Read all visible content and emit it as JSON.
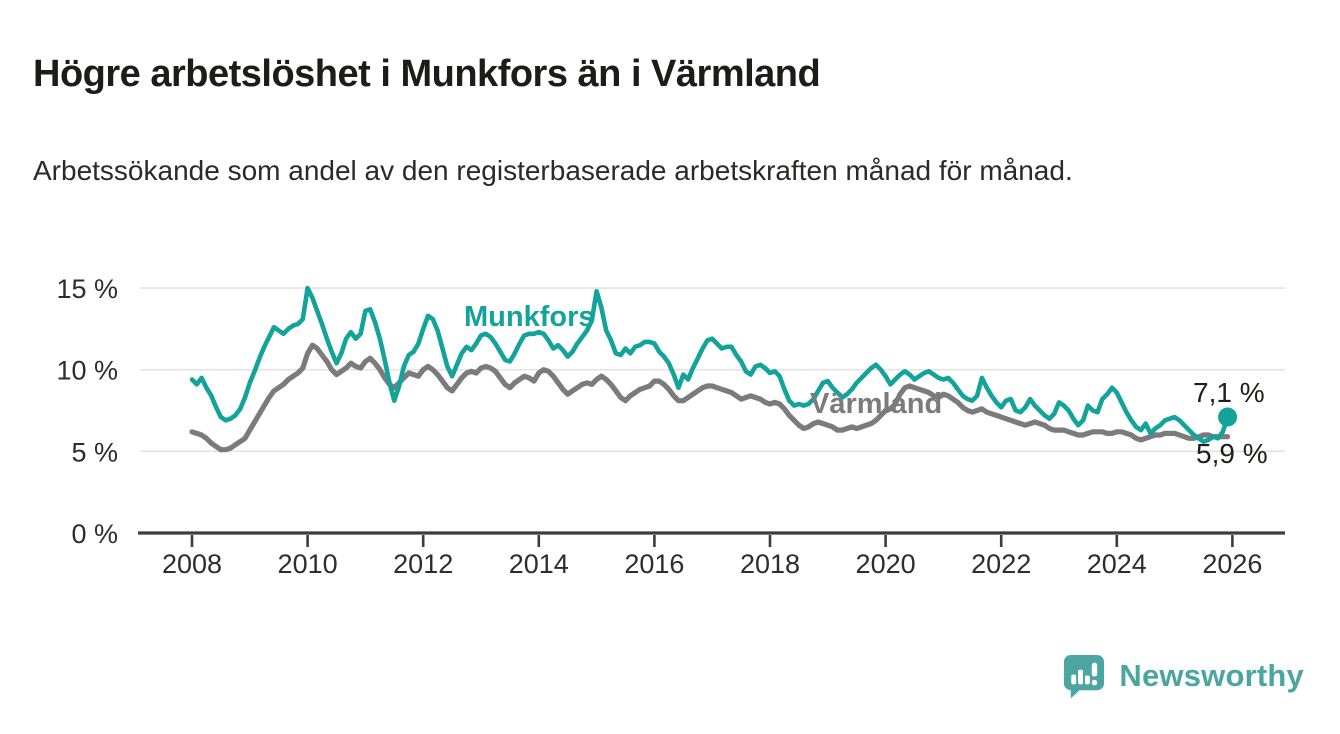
{
  "header": {
    "title": "Högre arbetslöshet i Munkfors än i Värmland",
    "subtitle": "Arbetssökande som andel av den registerbaserade arbetskraften månad för månad."
  },
  "chart_data": {
    "type": "line",
    "title": "Högre arbetslöshet i Munkfors än i Värmland",
    "x_axis": {
      "tick_years": [
        2008,
        2010,
        2012,
        2014,
        2016,
        2018,
        2020,
        2022,
        2024,
        2026
      ],
      "start": "2008-01",
      "end": "2025-12",
      "interval": "monthly"
    },
    "y_axis": {
      "tick_labels": [
        "0 %",
        "5 %",
        "10 %",
        "15 %"
      ],
      "ticks_pct": [
        0,
        5,
        10,
        15
      ],
      "ylim": [
        0,
        16.5
      ],
      "grid": true
    },
    "legend_position": "inline-labels",
    "series": [
      {
        "name": "Munkfors",
        "color": "#13a39a",
        "end_value": 7.1,
        "end_label": "7,1 %",
        "values": [
          9.4,
          9.1,
          9.5,
          8.9,
          8.4,
          7.7,
          7.1,
          6.9,
          7.0,
          7.2,
          7.6,
          8.3,
          9.2,
          9.9,
          10.7,
          11.4,
          12.0,
          12.6,
          12.4,
          12.2,
          12.5,
          12.7,
          12.8,
          13.1,
          15.0,
          14.4,
          13.6,
          12.8,
          11.9,
          11.1,
          10.4,
          11.0,
          11.9,
          12.3,
          11.9,
          12.2,
          13.6,
          13.7,
          12.9,
          11.9,
          10.6,
          9.2,
          8.1,
          9.0,
          10.2,
          10.9,
          11.1,
          11.6,
          12.5,
          13.3,
          13.1,
          12.4,
          11.3,
          10.2,
          9.6,
          10.3,
          11.0,
          11.4,
          11.2,
          11.6,
          12.1,
          12.2,
          12.0,
          11.6,
          11.1,
          10.6,
          10.5,
          11.0,
          11.6,
          12.1,
          12.2,
          12.2,
          12.3,
          12.2,
          11.8,
          11.3,
          11.5,
          11.2,
          10.8,
          11.1,
          11.6,
          12.0,
          12.4,
          13.0,
          14.8,
          13.8,
          12.4,
          11.8,
          11.0,
          10.9,
          11.3,
          11.0,
          11.4,
          11.5,
          11.7,
          11.7,
          11.6,
          11.1,
          10.8,
          10.4,
          9.7,
          8.9,
          9.7,
          9.4,
          10.1,
          10.7,
          11.3,
          11.8,
          11.9,
          11.6,
          11.3,
          11.4,
          11.4,
          10.9,
          10.5,
          9.9,
          9.7,
          10.2,
          10.3,
          10.1,
          9.8,
          9.9,
          9.6,
          8.8,
          8.1,
          7.8,
          7.9,
          7.8,
          7.9,
          8.2,
          8.7,
          9.2,
          9.3,
          8.9,
          8.6,
          8.3,
          8.5,
          8.8,
          9.2,
          9.5,
          9.8,
          10.1,
          10.3,
          10.0,
          9.6,
          9.1,
          9.4,
          9.7,
          9.9,
          9.7,
          9.4,
          9.6,
          9.8,
          9.9,
          9.7,
          9.5,
          9.4,
          9.5,
          9.2,
          8.8,
          8.4,
          8.2,
          8.1,
          8.4,
          9.5,
          8.9,
          8.4,
          8.0,
          7.7,
          8.1,
          8.2,
          7.5,
          7.4,
          7.7,
          8.2,
          7.8,
          7.5,
          7.2,
          7.0,
          7.3,
          8.0,
          7.8,
          7.5,
          7.0,
          6.6,
          6.9,
          7.8,
          7.5,
          7.4,
          8.2,
          8.5,
          8.9,
          8.6,
          8.0,
          7.4,
          6.9,
          6.5,
          6.3,
          6.7,
          6.1,
          6.4,
          6.6,
          6.9,
          7.0,
          7.1,
          6.9,
          6.6,
          6.3,
          6.0,
          5.8,
          5.6,
          5.7,
          5.9,
          5.8,
          6.2,
          7.1
        ]
      },
      {
        "name": "Värmland",
        "color": "#7b7b7e",
        "end_value": 5.9,
        "end_label": "5,9 %",
        "values": [
          6.2,
          6.1,
          6.0,
          5.8,
          5.5,
          5.3,
          5.1,
          5.1,
          5.2,
          5.4,
          5.6,
          5.8,
          6.3,
          6.8,
          7.3,
          7.8,
          8.3,
          8.7,
          8.9,
          9.1,
          9.4,
          9.6,
          9.8,
          10.1,
          11.0,
          11.5,
          11.3,
          10.9,
          10.5,
          10.0,
          9.7,
          9.9,
          10.1,
          10.4,
          10.2,
          10.1,
          10.5,
          10.7,
          10.4,
          10.0,
          9.5,
          9.1,
          8.9,
          9.2,
          9.5,
          9.8,
          9.7,
          9.6,
          10.0,
          10.2,
          10.0,
          9.7,
          9.3,
          8.9,
          8.7,
          9.1,
          9.5,
          9.8,
          9.9,
          9.8,
          10.1,
          10.2,
          10.1,
          9.9,
          9.5,
          9.1,
          8.9,
          9.2,
          9.4,
          9.6,
          9.5,
          9.3,
          9.8,
          10.0,
          9.9,
          9.6,
          9.2,
          8.8,
          8.5,
          8.7,
          8.9,
          9.1,
          9.2,
          9.1,
          9.4,
          9.6,
          9.4,
          9.1,
          8.7,
          8.3,
          8.1,
          8.4,
          8.6,
          8.8,
          8.9,
          9.0,
          9.3,
          9.3,
          9.1,
          8.8,
          8.4,
          8.1,
          8.1,
          8.3,
          8.5,
          8.7,
          8.9,
          9.0,
          9.0,
          8.9,
          8.8,
          8.7,
          8.6,
          8.4,
          8.2,
          8.3,
          8.4,
          8.3,
          8.2,
          8.0,
          7.9,
          8.0,
          7.9,
          7.6,
          7.2,
          6.9,
          6.6,
          6.4,
          6.5,
          6.7,
          6.8,
          6.7,
          6.6,
          6.5,
          6.3,
          6.3,
          6.4,
          6.5,
          6.4,
          6.5,
          6.6,
          6.7,
          6.9,
          7.2,
          7.5,
          7.6,
          7.9,
          8.5,
          8.9,
          9.0,
          8.9,
          8.8,
          8.7,
          8.6,
          8.4,
          8.3,
          8.5,
          8.4,
          8.2,
          8.0,
          7.7,
          7.5,
          7.4,
          7.5,
          7.6,
          7.4,
          7.3,
          7.2,
          7.1,
          7.0,
          6.9,
          6.8,
          6.7,
          6.6,
          6.7,
          6.8,
          6.7,
          6.6,
          6.4,
          6.3,
          6.3,
          6.3,
          6.2,
          6.1,
          6.0,
          6.0,
          6.1,
          6.2,
          6.2,
          6.2,
          6.1,
          6.1,
          6.2,
          6.2,
          6.1,
          6.0,
          5.8,
          5.7,
          5.8,
          5.9,
          6.0,
          6.0,
          6.1,
          6.1,
          6.1,
          6.0,
          5.9,
          5.8,
          5.8,
          5.9,
          6.0,
          6.0,
          5.9,
          5.9,
          5.9,
          5.9
        ]
      }
    ]
  },
  "footer": {
    "brand": "Newsworthy",
    "brand_color": "#4ba5a0",
    "logo_icon": "newsworthy-speech-bubble-chart-icon"
  }
}
